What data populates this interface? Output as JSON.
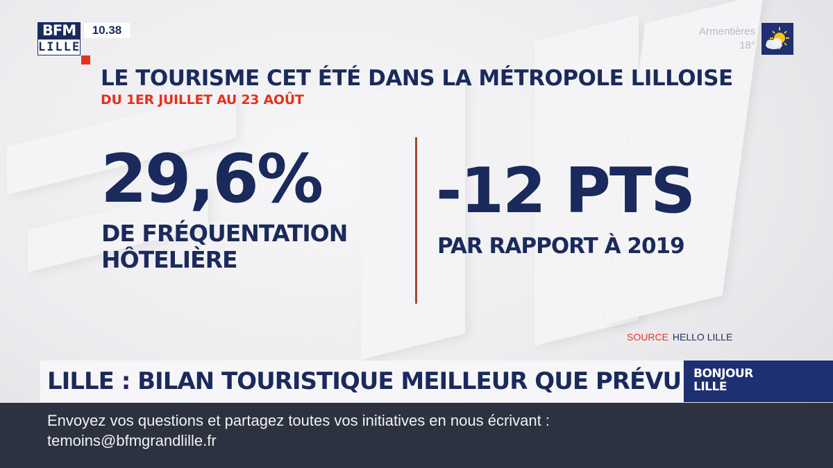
{
  "channel": {
    "logo_top": "BFM",
    "logo_bottom": "LILLE",
    "time": "10.38"
  },
  "weather": {
    "city": "Armentières",
    "temperature": "18°",
    "icon": "sun-cloud-icon"
  },
  "graphic": {
    "title": "LE TOURISME CET ÉTÉ DANS LA MÉTROPOLE LILLOISE",
    "subtitle": "DU 1ER JUILLET AU 23 AOÛT",
    "stat_left_value": "29,6%",
    "stat_left_label_line1": "DE FRÉQUENTATION",
    "stat_left_label_line2": "HÔTELIÈRE",
    "stat_right_value": "-12 PTS",
    "stat_right_label": "PAR RAPPORT À 2019",
    "source_key": "SOURCE",
    "source_value": "HELLO LILLE"
  },
  "headline": "LILLE : BILAN TOURISTIQUE MEILLEUR QUE PRÉVU",
  "show": {
    "line1": "BONJOUR",
    "line2": "LILLE"
  },
  "ticker": {
    "line1": "Envoyez vos questions et partagez toutes vos initiatives en nous écrivant :",
    "line2": "temoins@bfmgrandlille.fr"
  },
  "colors": {
    "navy": "#1b2a5c",
    "red": "#e4321d",
    "divider": "#a2492c",
    "ticker_bg": "#2c323f"
  }
}
